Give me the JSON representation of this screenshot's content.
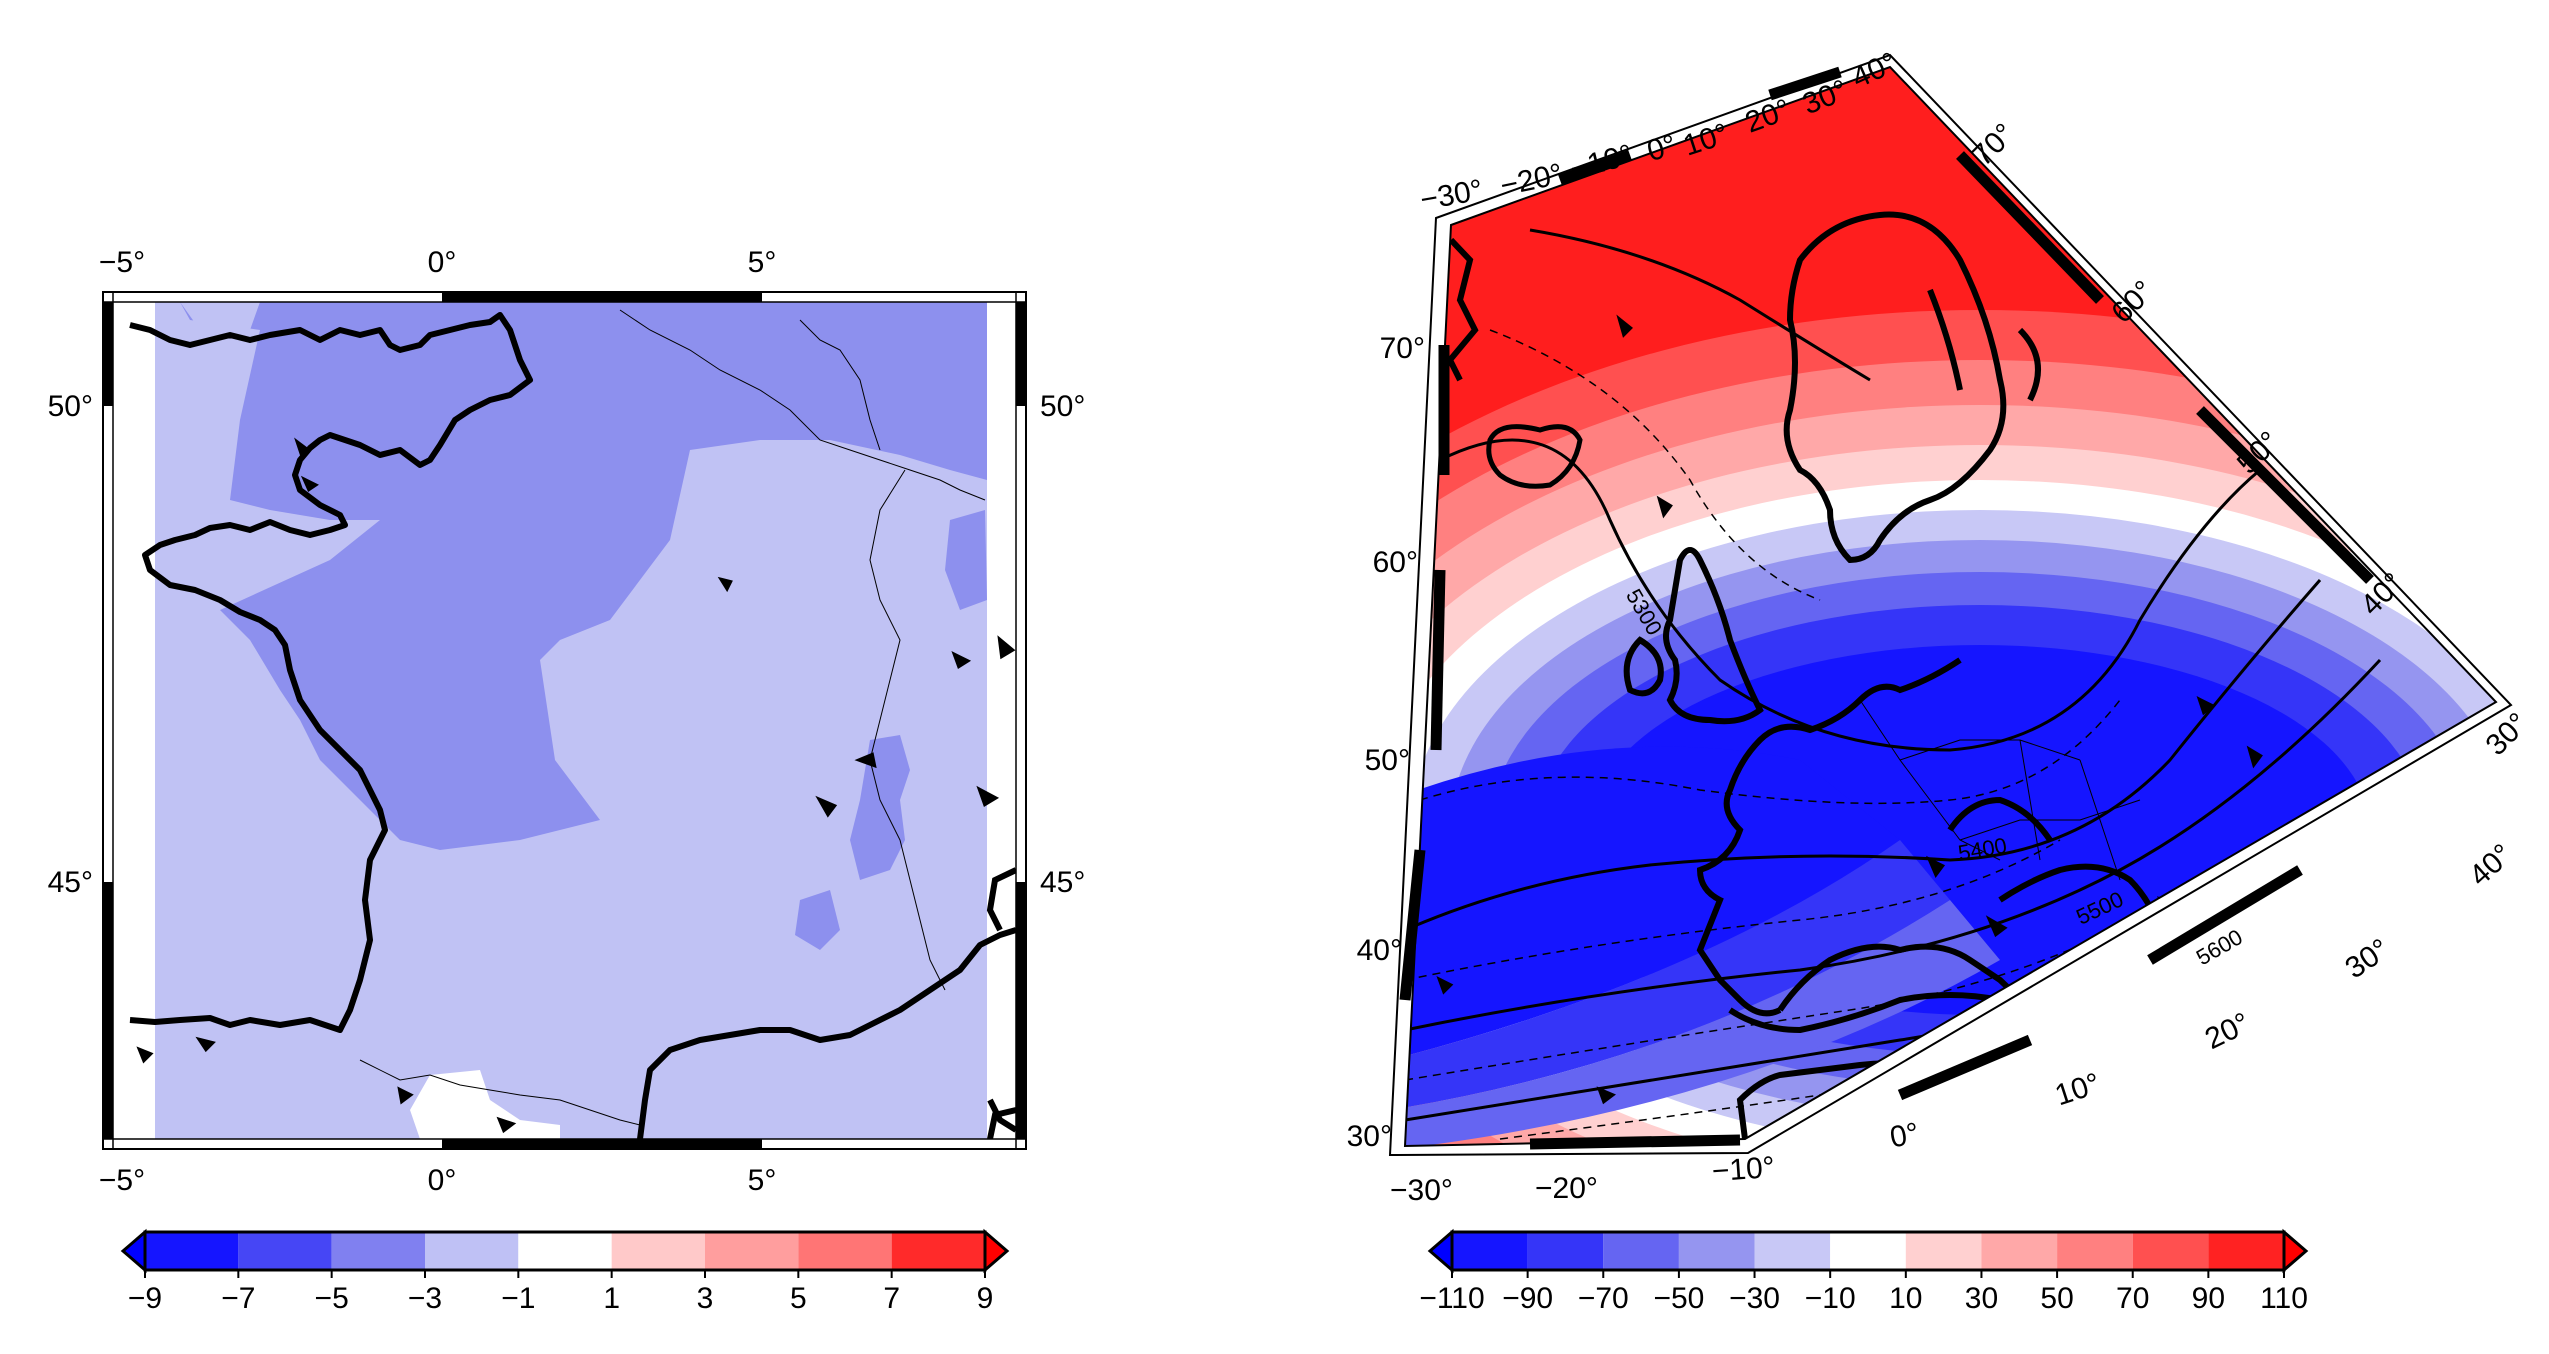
{
  "left_map": {
    "lon_ticks": [
      "−5°",
      "0°",
      "5°"
    ],
    "lat_ticks_left": [
      "50°",
      "45°"
    ],
    "lat_ticks_right": [
      "50°",
      "45°"
    ],
    "colorbar": {
      "labels": [
        "−9",
        "−7",
        "−5",
        "−3",
        "−1",
        "1",
        "3",
        "5",
        "7",
        "9"
      ],
      "colors": [
        "#1515ff",
        "#4646f5",
        "#8080f0",
        "#bfc1f5",
        "#ffffff",
        "#ffc9c9",
        "#ff9e9e",
        "#ff7575",
        "#ff2a2a"
      ],
      "under_color": "#0000ff",
      "over_color": "#ff0000"
    }
  },
  "right_map": {
    "lat_ticks_left": [
      "70°",
      "60°",
      "50°",
      "40°",
      "30°"
    ],
    "lon_ticks_top": [
      "−30°",
      "−20°",
      "−10°",
      "0°",
      "10°",
      "20°",
      "30°",
      "40°"
    ],
    "lon_ticks_bottom": [
      "−30°",
      "−20°",
      "−10°",
      "0°",
      "10°",
      "20°",
      "30°",
      "40°"
    ],
    "lat_ticks_right": [
      "70°",
      "60°",
      "50°",
      "40°",
      "30°"
    ],
    "contour_labels": [
      "5300",
      "5400",
      "5500",
      "5600"
    ],
    "colorbar": {
      "labels": [
        "−110",
        "−90",
        "−70",
        "−50",
        "−30",
        "−10",
        "10",
        "30",
        "50",
        "70",
        "90",
        "110"
      ],
      "colors": [
        "#1515ff",
        "#3535f8",
        "#6565f2",
        "#9595f0",
        "#c8c8f6",
        "#ffffff",
        "#ffd0d0",
        "#ffa8a8",
        "#ff8080",
        "#ff5050",
        "#ff2222"
      ],
      "under_color": "#0000ff",
      "over_color": "#ff0000"
    }
  }
}
